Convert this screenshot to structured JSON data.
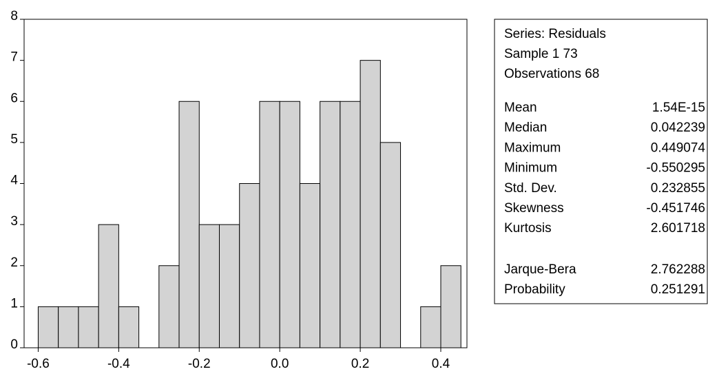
{
  "chart_data": {
    "type": "histogram",
    "bins": [
      -0.6,
      -0.55,
      -0.5,
      -0.45,
      -0.4,
      -0.35,
      -0.3,
      -0.25,
      -0.2,
      -0.15,
      -0.1,
      -0.05,
      0,
      0.05,
      0.1,
      0.15,
      0.2,
      0.25,
      0.3,
      0.35,
      0.4,
      0.45
    ],
    "values": [
      1,
      1,
      1,
      3,
      1,
      0,
      2,
      6,
      3,
      3,
      4,
      6,
      6,
      4,
      6,
      6,
      7,
      5,
      0,
      1,
      2
    ],
    "color": "#d3d3d3",
    "xlim": [
      -0.635,
      0.465
    ],
    "xticks": [
      -0.6,
      -0.4,
      -0.2,
      {
        "value": 0,
        "label": "0.0"
      },
      0.2,
      0.4
    ],
    "ylim": [
      0,
      8
    ],
    "yticks": [
      0,
      1,
      2,
      3,
      4,
      5,
      6,
      7,
      8
    ]
  },
  "stats_panel": {
    "header": [
      "Series: Residuals",
      "Sample 1 73",
      "Observations 68"
    ],
    "rows": [
      [
        "Mean",
        "1.54E-15"
      ],
      [
        "Median",
        "0.042239"
      ],
      [
        "Maximum",
        "0.449074"
      ],
      [
        "Minimum",
        "-0.550295"
      ],
      [
        "Std. Dev.",
        "0.232855"
      ],
      [
        "Skewness",
        "-0.451746"
      ],
      [
        "Kurtosis",
        "2.601718"
      ]
    ],
    "test_rows": [
      [
        "Jarque-Bera",
        "2.762288"
      ],
      [
        "Probability",
        "0.251291"
      ]
    ]
  }
}
